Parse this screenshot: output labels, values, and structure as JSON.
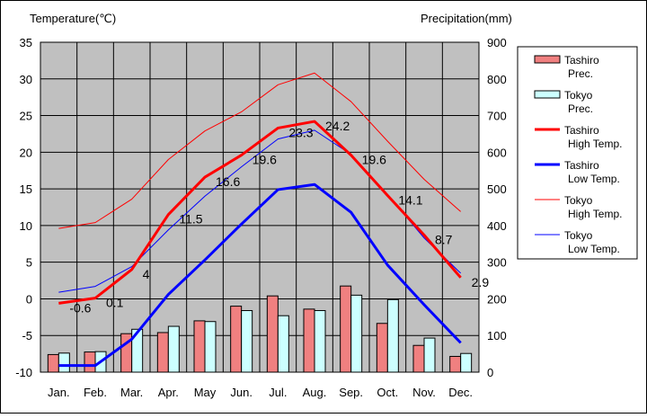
{
  "chart_data": {
    "type": "bar+line",
    "categories": [
      "Jan.",
      "Feb.",
      "Mar.",
      "Apr.",
      "May",
      "Jun.",
      "Jul.",
      "Aug.",
      "Sep.",
      "Oct.",
      "Nov.",
      "Dec."
    ],
    "left_axis": {
      "label": "Temperature(℃)",
      "ylim": [
        -10,
        35
      ],
      "ticks": [
        -10,
        -5,
        0,
        5,
        10,
        15,
        20,
        25,
        30,
        35
      ]
    },
    "right_axis": {
      "label": "Precipitation(mm)",
      "ylim": [
        0,
        900
      ],
      "ticks": [
        0,
        100,
        200,
        300,
        400,
        500,
        600,
        700,
        800,
        900
      ]
    },
    "bars": [
      {
        "name": "Tashiro Prec.",
        "legend": [
          "Tashiro",
          "Prec."
        ],
        "color": "#f08080",
        "values": [
          48,
          55,
          105,
          108,
          140,
          180,
          208,
          172,
          235,
          133,
          73,
          43
        ]
      },
      {
        "name": "Tokyo Prec.",
        "legend": [
          "Tokyo",
          "Prec."
        ],
        "color": "#ccffff",
        "values": [
          52,
          56,
          117,
          125,
          138,
          168,
          154,
          168,
          210,
          198,
          93,
          51
        ]
      }
    ],
    "lines": [
      {
        "name": "Tashiro High Temp.",
        "legend": [
          "Tashiro",
          "High Temp."
        ],
        "color": "#ff0000",
        "width": 3,
        "values": [
          -0.6,
          0.1,
          4.0,
          11.5,
          16.6,
          19.6,
          23.3,
          24.2,
          19.6,
          14.1,
          8.7,
          2.9
        ],
        "labels": [
          "-0.6",
          "0.1",
          "4",
          "11.5",
          "16.6",
          "19.6",
          "23.3",
          "24.2",
          "19.6",
          "14.1",
          "8.7",
          "2.9"
        ]
      },
      {
        "name": "Tashiro Low Temp.",
        "legend": [
          "Tashiro",
          "Low Temp."
        ],
        "color": "#0000ff",
        "width": 3,
        "values": [
          -9.1,
          -9.1,
          -5.5,
          0.6,
          5.3,
          10.2,
          14.9,
          15.6,
          11.8,
          4.6,
          -0.8,
          -6.0
        ]
      },
      {
        "name": "Tokyo High Temp.",
        "legend": [
          "Tokyo",
          "High Temp."
        ],
        "color": "#ff0000",
        "width": 1,
        "values": [
          9.6,
          10.4,
          13.6,
          19.0,
          22.9,
          25.5,
          29.2,
          30.8,
          26.9,
          21.5,
          16.3,
          11.9
        ]
      },
      {
        "name": "Tokyo Low Temp.",
        "legend": [
          "Tokyo",
          "Low Temp."
        ],
        "color": "#0000ff",
        "width": 1,
        "values": [
          0.9,
          1.7,
          4.4,
          9.4,
          14.0,
          18.0,
          21.8,
          23.0,
          19.7,
          14.2,
          8.3,
          3.5
        ]
      }
    ]
  }
}
